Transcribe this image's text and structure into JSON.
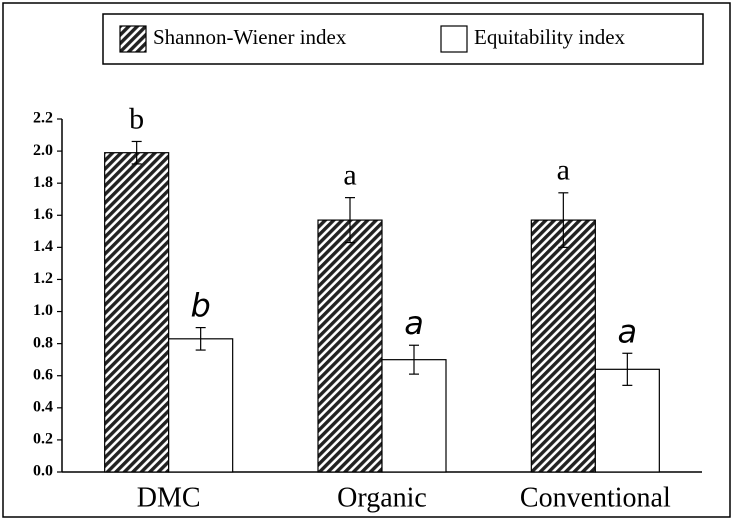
{
  "chart_data": {
    "type": "bar",
    "categories": [
      "DMC",
      "Organic",
      "Conventional"
    ],
    "series": [
      {
        "name": "Shannon-Wiener index",
        "color": "#000000",
        "pattern": "hatch",
        "values": [
          1.99,
          1.57,
          1.57
        ],
        "errors": [
          0.07,
          0.14,
          0.17
        ],
        "labels": [
          "b",
          "a",
          "a"
        ]
      },
      {
        "name": "Equitability index",
        "color": "#ffffff",
        "values": [
          0.83,
          0.7,
          0.64
        ],
        "errors": [
          0.07,
          0.09,
          0.1
        ],
        "labels": [
          "b",
          "a",
          "a"
        ]
      }
    ],
    "ylim": [
      0,
      2.2
    ],
    "yticks": [
      {
        "value": 0,
        "label": "0.0"
      },
      0.2,
      0.4,
      0.6,
      0.8,
      {
        "value": 1,
        "label": "1.0"
      },
      1.2,
      1.4,
      1.6,
      1.8,
      {
        "value": 2,
        "label": "2.0"
      },
      2.2
    ],
    "legend": "top"
  }
}
